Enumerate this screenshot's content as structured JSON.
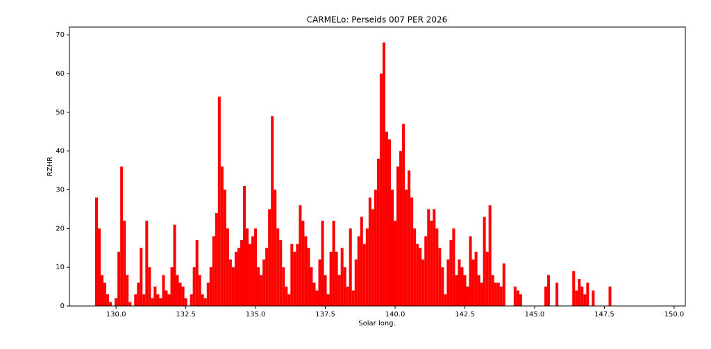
{
  "chart_data": {
    "type": "bar",
    "title": "CARMELo: Perseids 007 PER  2026",
    "x_label": "Solar long.",
    "y_label": "RZHR",
    "color": "#ff0000",
    "xlim": [
      128.33,
      150.4
    ],
    "ylim": [
      0,
      72
    ],
    "xticks": [
      {
        "value": 130,
        "label": "130.0"
      },
      {
        "value": 132.5,
        "label": "132.5"
      },
      {
        "value": 135,
        "label": "135.0"
      },
      {
        "value": 137.5,
        "label": "137.5"
      },
      {
        "value": 140,
        "label": "140.0"
      },
      {
        "value": 142.5,
        "label": "142.5"
      },
      {
        "value": 145,
        "label": "145.0"
      },
      {
        "value": 147.5,
        "label": "147.5"
      },
      {
        "value": 150,
        "label": "150.0"
      }
    ],
    "yticks": [
      0,
      10,
      20,
      30,
      40,
      50,
      60,
      70
    ],
    "bar_width": 0.1,
    "x": [
      129.3,
      129.4,
      129.5,
      129.6,
      129.7,
      129.8,
      129.9,
      130.0,
      130.1,
      130.2,
      130.3,
      130.4,
      130.5,
      130.6,
      130.7,
      130.8,
      130.9,
      131.0,
      131.1,
      131.2,
      131.3,
      131.4,
      131.5,
      131.6,
      131.7,
      131.8,
      131.9,
      132.0,
      132.1,
      132.2,
      132.3,
      132.4,
      132.5,
      132.6,
      132.7,
      132.8,
      132.9,
      133.0,
      133.1,
      133.2,
      133.3,
      133.4,
      133.5,
      133.6,
      133.7,
      133.8,
      133.9,
      134.0,
      134.1,
      134.2,
      134.3,
      134.4,
      134.5,
      134.6,
      134.7,
      134.8,
      134.9,
      135.0,
      135.1,
      135.2,
      135.3,
      135.4,
      135.5,
      135.6,
      135.7,
      135.8,
      135.9,
      136.0,
      136.1,
      136.2,
      136.3,
      136.4,
      136.5,
      136.6,
      136.7,
      136.8,
      136.9,
      137.0,
      137.1,
      137.2,
      137.3,
      137.4,
      137.5,
      137.6,
      137.7,
      137.8,
      137.9,
      138.0,
      138.1,
      138.2,
      138.3,
      138.4,
      138.5,
      138.6,
      138.7,
      138.8,
      138.9,
      139.0,
      139.1,
      139.2,
      139.3,
      139.4,
      139.5,
      139.6,
      139.7,
      139.8,
      139.9,
      140.0,
      140.1,
      140.2,
      140.3,
      140.4,
      140.5,
      140.6,
      140.7,
      140.8,
      140.9,
      141.0,
      141.1,
      141.2,
      141.3,
      141.4,
      141.5,
      141.6,
      141.7,
      141.8,
      141.9,
      142.0,
      142.1,
      142.2,
      142.3,
      142.4,
      142.5,
      142.6,
      142.7,
      142.8,
      142.9,
      143.0,
      143.1,
      143.2,
      143.3,
      143.4,
      143.5,
      143.6,
      143.7,
      143.8,
      143.9,
      144.0,
      144.1,
      144.2,
      144.3,
      144.4,
      144.5,
      144.6,
      144.7,
      144.8,
      144.9,
      145.0,
      145.1,
      145.2,
      145.3,
      145.4,
      145.5,
      145.6,
      145.7,
      145.8,
      145.9,
      146.0,
      146.1,
      146.2,
      146.3,
      146.4,
      146.5,
      146.6,
      146.7,
      146.8,
      146.9,
      147.0,
      147.1,
      147.2,
      147.3,
      147.4,
      147.5,
      147.6,
      147.7,
      147.8
    ],
    "values": [
      28,
      20,
      8,
      6,
      3,
      1,
      0,
      2,
      14,
      36,
      22,
      8,
      1,
      0,
      3,
      6,
      15,
      3,
      22,
      10,
      2,
      5,
      3,
      2,
      8,
      4,
      3,
      10,
      21,
      8,
      6,
      5,
      2,
      0,
      3,
      10,
      17,
      8,
      3,
      2,
      6,
      10,
      18,
      24,
      54,
      36,
      30,
      20,
      12,
      10,
      14,
      15,
      17,
      31,
      20,
      16,
      18,
      20,
      10,
      8,
      12,
      15,
      25,
      49,
      30,
      20,
      17,
      10,
      5,
      3,
      16,
      14,
      16,
      26,
      22,
      18,
      15,
      10,
      6,
      4,
      12,
      22,
      8,
      3,
      14,
      22,
      14,
      8,
      15,
      10,
      5,
      20,
      4,
      12,
      18,
      23,
      16,
      20,
      28,
      25,
      30,
      38,
      60,
      68,
      45,
      43,
      30,
      22,
      36,
      40,
      47,
      30,
      35,
      28,
      20,
      16,
      15,
      12,
      18,
      25,
      22,
      25,
      20,
      15,
      10,
      3,
      12,
      17,
      20,
      8,
      12,
      10,
      8,
      5,
      18,
      12,
      14,
      8,
      6,
      23,
      14,
      26,
      8,
      6,
      6,
      5,
      11,
      0,
      0,
      0,
      5,
      4,
      3,
      0,
      0,
      0,
      0,
      0,
      0,
      0,
      0,
      5,
      8,
      0,
      0,
      6,
      0,
      0,
      0,
      0,
      0,
      9,
      4,
      7,
      5,
      3,
      6,
      0,
      4,
      0,
      0,
      0,
      0,
      0,
      5,
      0
    ]
  }
}
